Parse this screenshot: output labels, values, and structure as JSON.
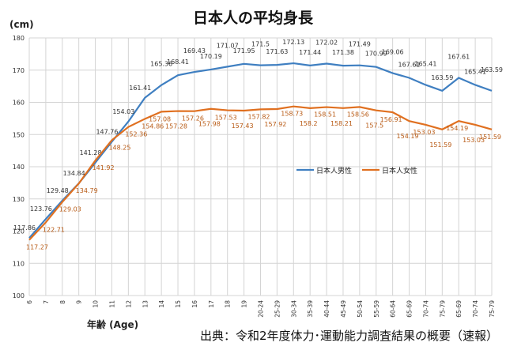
{
  "chart_data": {
    "type": "line",
    "title": "日本人の平均身長",
    "ylabel": "(cm)",
    "xlabel": "年齢 (Age)",
    "source": "出典：令和2年度体力･運動能力調査結果の概要（速報）",
    "ylim": [
      100,
      180
    ],
    "yticks": [
      100,
      110,
      120,
      130,
      140,
      150,
      160,
      170,
      180
    ],
    "grid": true,
    "legend_placement": "center-right",
    "categories": [
      "6",
      "7",
      "8",
      "9",
      "10",
      "11",
      "12",
      "13",
      "14",
      "15",
      "16",
      "17",
      "18",
      "19",
      "20-24",
      "25-29",
      "30-34",
      "35-39",
      "40-44",
      "45-49",
      "50-54",
      "55-59",
      "60-64",
      "65-69",
      "70-74",
      "75-79",
      "65-69",
      "70-74",
      "75-79"
    ],
    "series": [
      {
        "name": "日本人男性",
        "color": "#3f7fc1",
        "values": [
          117.86,
          123.76,
          129.48,
          134.84,
          141.28,
          147.76,
          154.03,
          161.41,
          165.36,
          168.41,
          169.43,
          170.19,
          171.07,
          171.95,
          171.5,
          171.63,
          172.13,
          171.44,
          172.02,
          171.38,
          171.49,
          170.99,
          169.06,
          167.61,
          165.41,
          163.59,
          167.61,
          165.41,
          163.59
        ]
      },
      {
        "name": "日本人女性",
        "color": "#e07020",
        "values": [
          117.27,
          122.71,
          129.03,
          134.79,
          141.92,
          148.25,
          152.36,
          154.86,
          157.08,
          157.28,
          157.26,
          157.98,
          157.53,
          157.43,
          157.82,
          157.92,
          158.73,
          158.2,
          158.51,
          158.21,
          158.56,
          157.5,
          156.91,
          154.19,
          153.03,
          151.59,
          154.19,
          153.03,
          151.59
        ]
      }
    ]
  }
}
